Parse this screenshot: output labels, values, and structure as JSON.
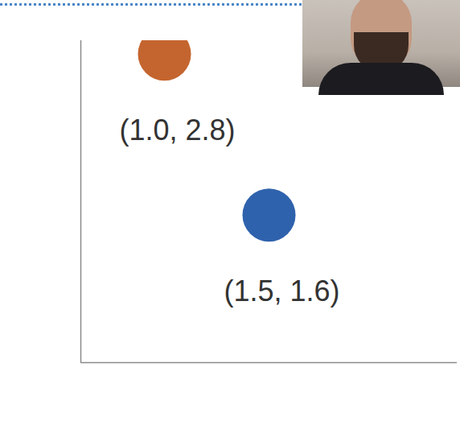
{
  "chart_data": {
    "type": "scatter",
    "x": [
      1.0,
      1.5
    ],
    "values": [
      2.8,
      1.6
    ],
    "value_labels": [
      "(1.0, 2.8)",
      "(1.5, 1.6)"
    ],
    "colors": [
      "#c4652f",
      "#2f62ad"
    ],
    "marker": "circle",
    "data_labels": true,
    "xlim": [
      0.6,
      2.4
    ],
    "ylim": [
      0.5,
      2.9
    ],
    "xticks": [],
    "yticks": [],
    "tick_labels": false,
    "grid": false
  }
}
